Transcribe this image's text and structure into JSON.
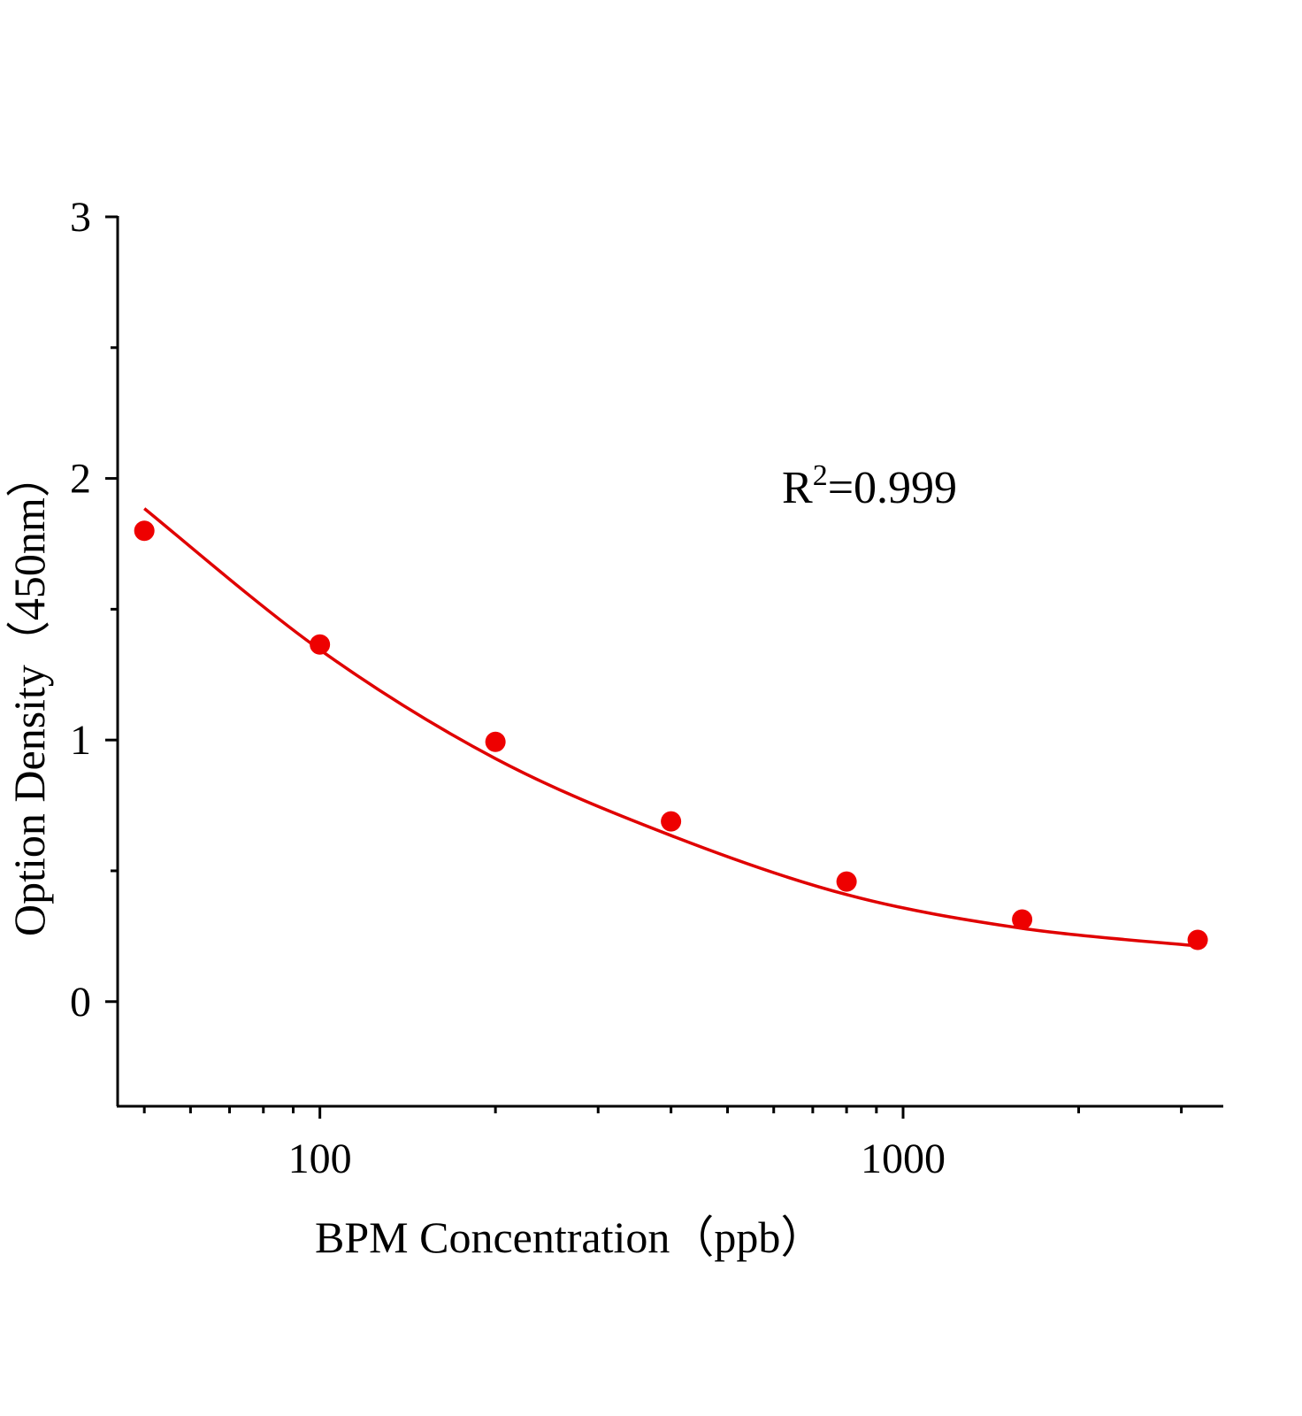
{
  "chart_data": {
    "type": "scatter",
    "title": "",
    "xlabel": "BPM Concentration（ppb）",
    "ylabel": "Option Density（450nm）",
    "xscale": "log",
    "xlim": [
      45,
      3540
    ],
    "ylim": [
      -0.4,
      3
    ],
    "x_ticks": [
      100,
      1000
    ],
    "x_tick_labels": [
      "100",
      "1000"
    ],
    "x_minor_ticks": [
      50,
      60,
      70,
      80,
      90,
      200,
      300,
      400,
      500,
      600,
      700,
      800,
      900,
      2000,
      3000
    ],
    "y_ticks": [
      0,
      1,
      2,
      3
    ],
    "y_tick_labels": [
      "0",
      "1",
      "2",
      "3"
    ],
    "y_minor_ticks": [
      0.5,
      1.5,
      2.5
    ],
    "grid": false,
    "annotation": {
      "base": "R",
      "sup": "2",
      "rest": "=0.999"
    },
    "series": [
      {
        "type": "scatter",
        "color": "#ee0000",
        "x": [
          50,
          100,
          200,
          400,
          800,
          1600,
          3200
        ],
        "y": [
          1.8,
          1.365,
          0.993,
          0.689,
          0.459,
          0.314,
          0.236
        ]
      },
      {
        "type": "line",
        "color": "#e00000",
        "x": [
          50,
          100,
          200,
          400,
          800,
          1600,
          3200
        ],
        "y": [
          1.885,
          1.345,
          0.929,
          0.635,
          0.409,
          0.28,
          0.213
        ]
      }
    ]
  }
}
